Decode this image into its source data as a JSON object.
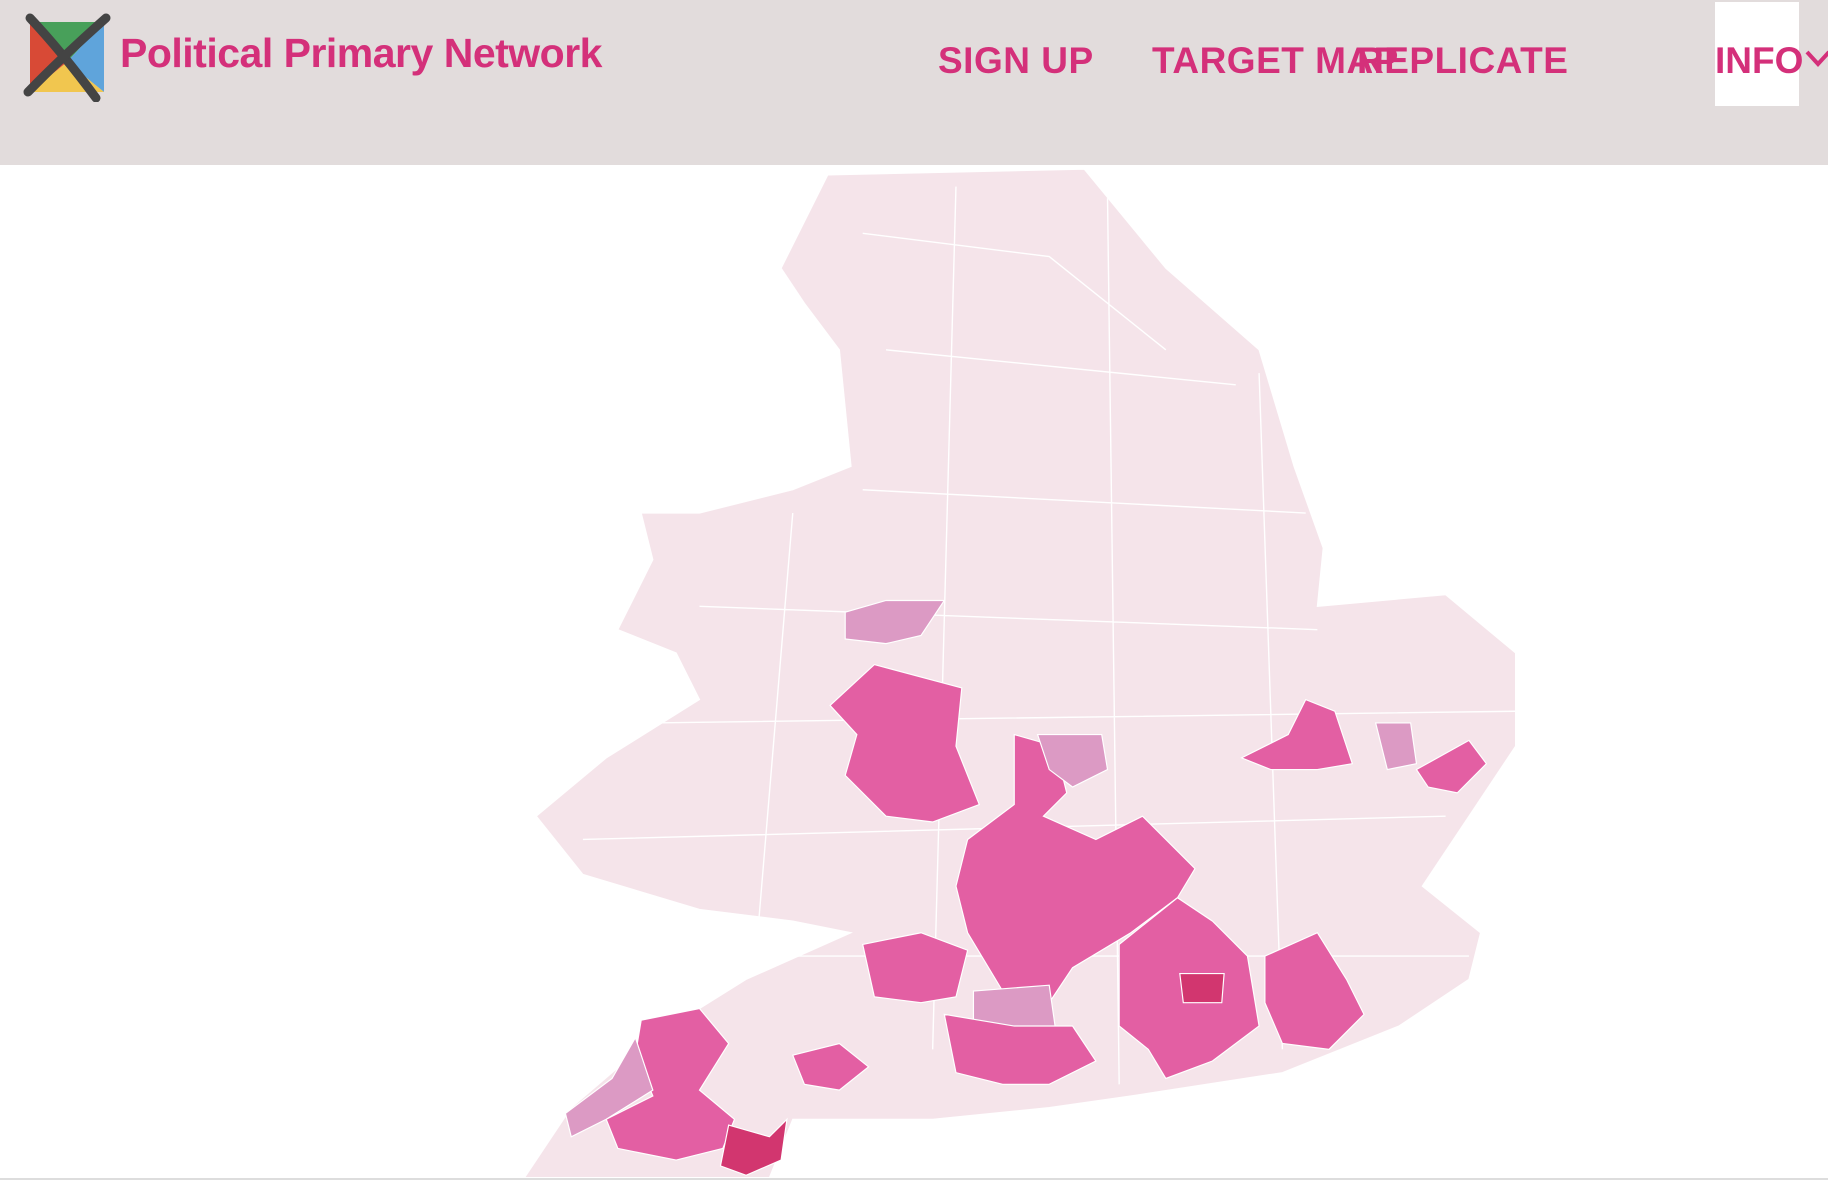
{
  "header": {
    "brand": "Political Primary Network",
    "nav": [
      {
        "label": "SIGN UP"
      },
      {
        "label": "TARGET MAP"
      },
      {
        "label": "REPLICATE"
      },
      {
        "label": "INFO"
      }
    ],
    "info_icon": "chevron-down-icon"
  },
  "map": {
    "region": "England and Wales constituencies",
    "colors": {
      "base": "#f5e4ea",
      "medium": "#e35fa3",
      "light": "#dc9ac4",
      "dark": "#d2366f",
      "border": "#ffffff"
    }
  },
  "colors": {
    "accent": "#d4307a",
    "header_bg": "#e2dcdc"
  }
}
